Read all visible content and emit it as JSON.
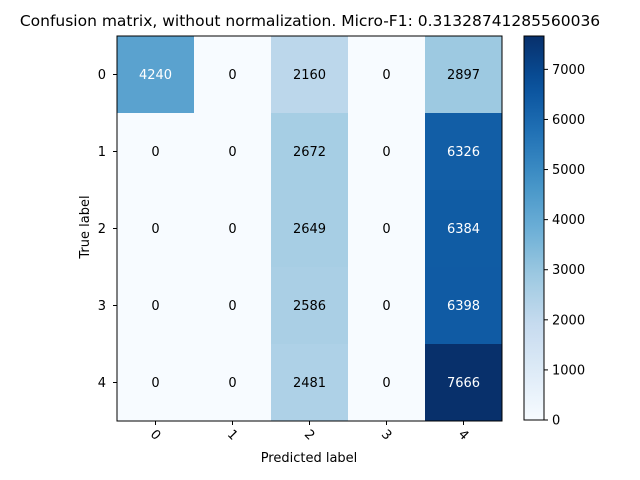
{
  "chart_data": {
    "type": "heatmap",
    "title": "Confusion matrix, without normalization. Micro-F1: 0.31328741285560036",
    "xlabel": "Predicted label",
    "ylabel": "True label",
    "x_ticks": [
      "0",
      "1",
      "2",
      "3",
      "4"
    ],
    "y_ticks": [
      "0",
      "1",
      "2",
      "3",
      "4"
    ],
    "matrix": [
      [
        4240,
        0,
        2160,
        0,
        2897
      ],
      [
        0,
        0,
        2672,
        0,
        6326
      ],
      [
        0,
        0,
        2649,
        0,
        6384
      ],
      [
        0,
        0,
        2586,
        0,
        6398
      ],
      [
        0,
        0,
        2481,
        0,
        7666
      ]
    ],
    "colormap": "Blues",
    "colorbar": {
      "min": 0,
      "max": 7666,
      "ticks": [
        0,
        1000,
        2000,
        3000,
        4000,
        5000,
        6000,
        7000
      ]
    },
    "x_tick_rotation_deg": 45,
    "grid": false
  }
}
